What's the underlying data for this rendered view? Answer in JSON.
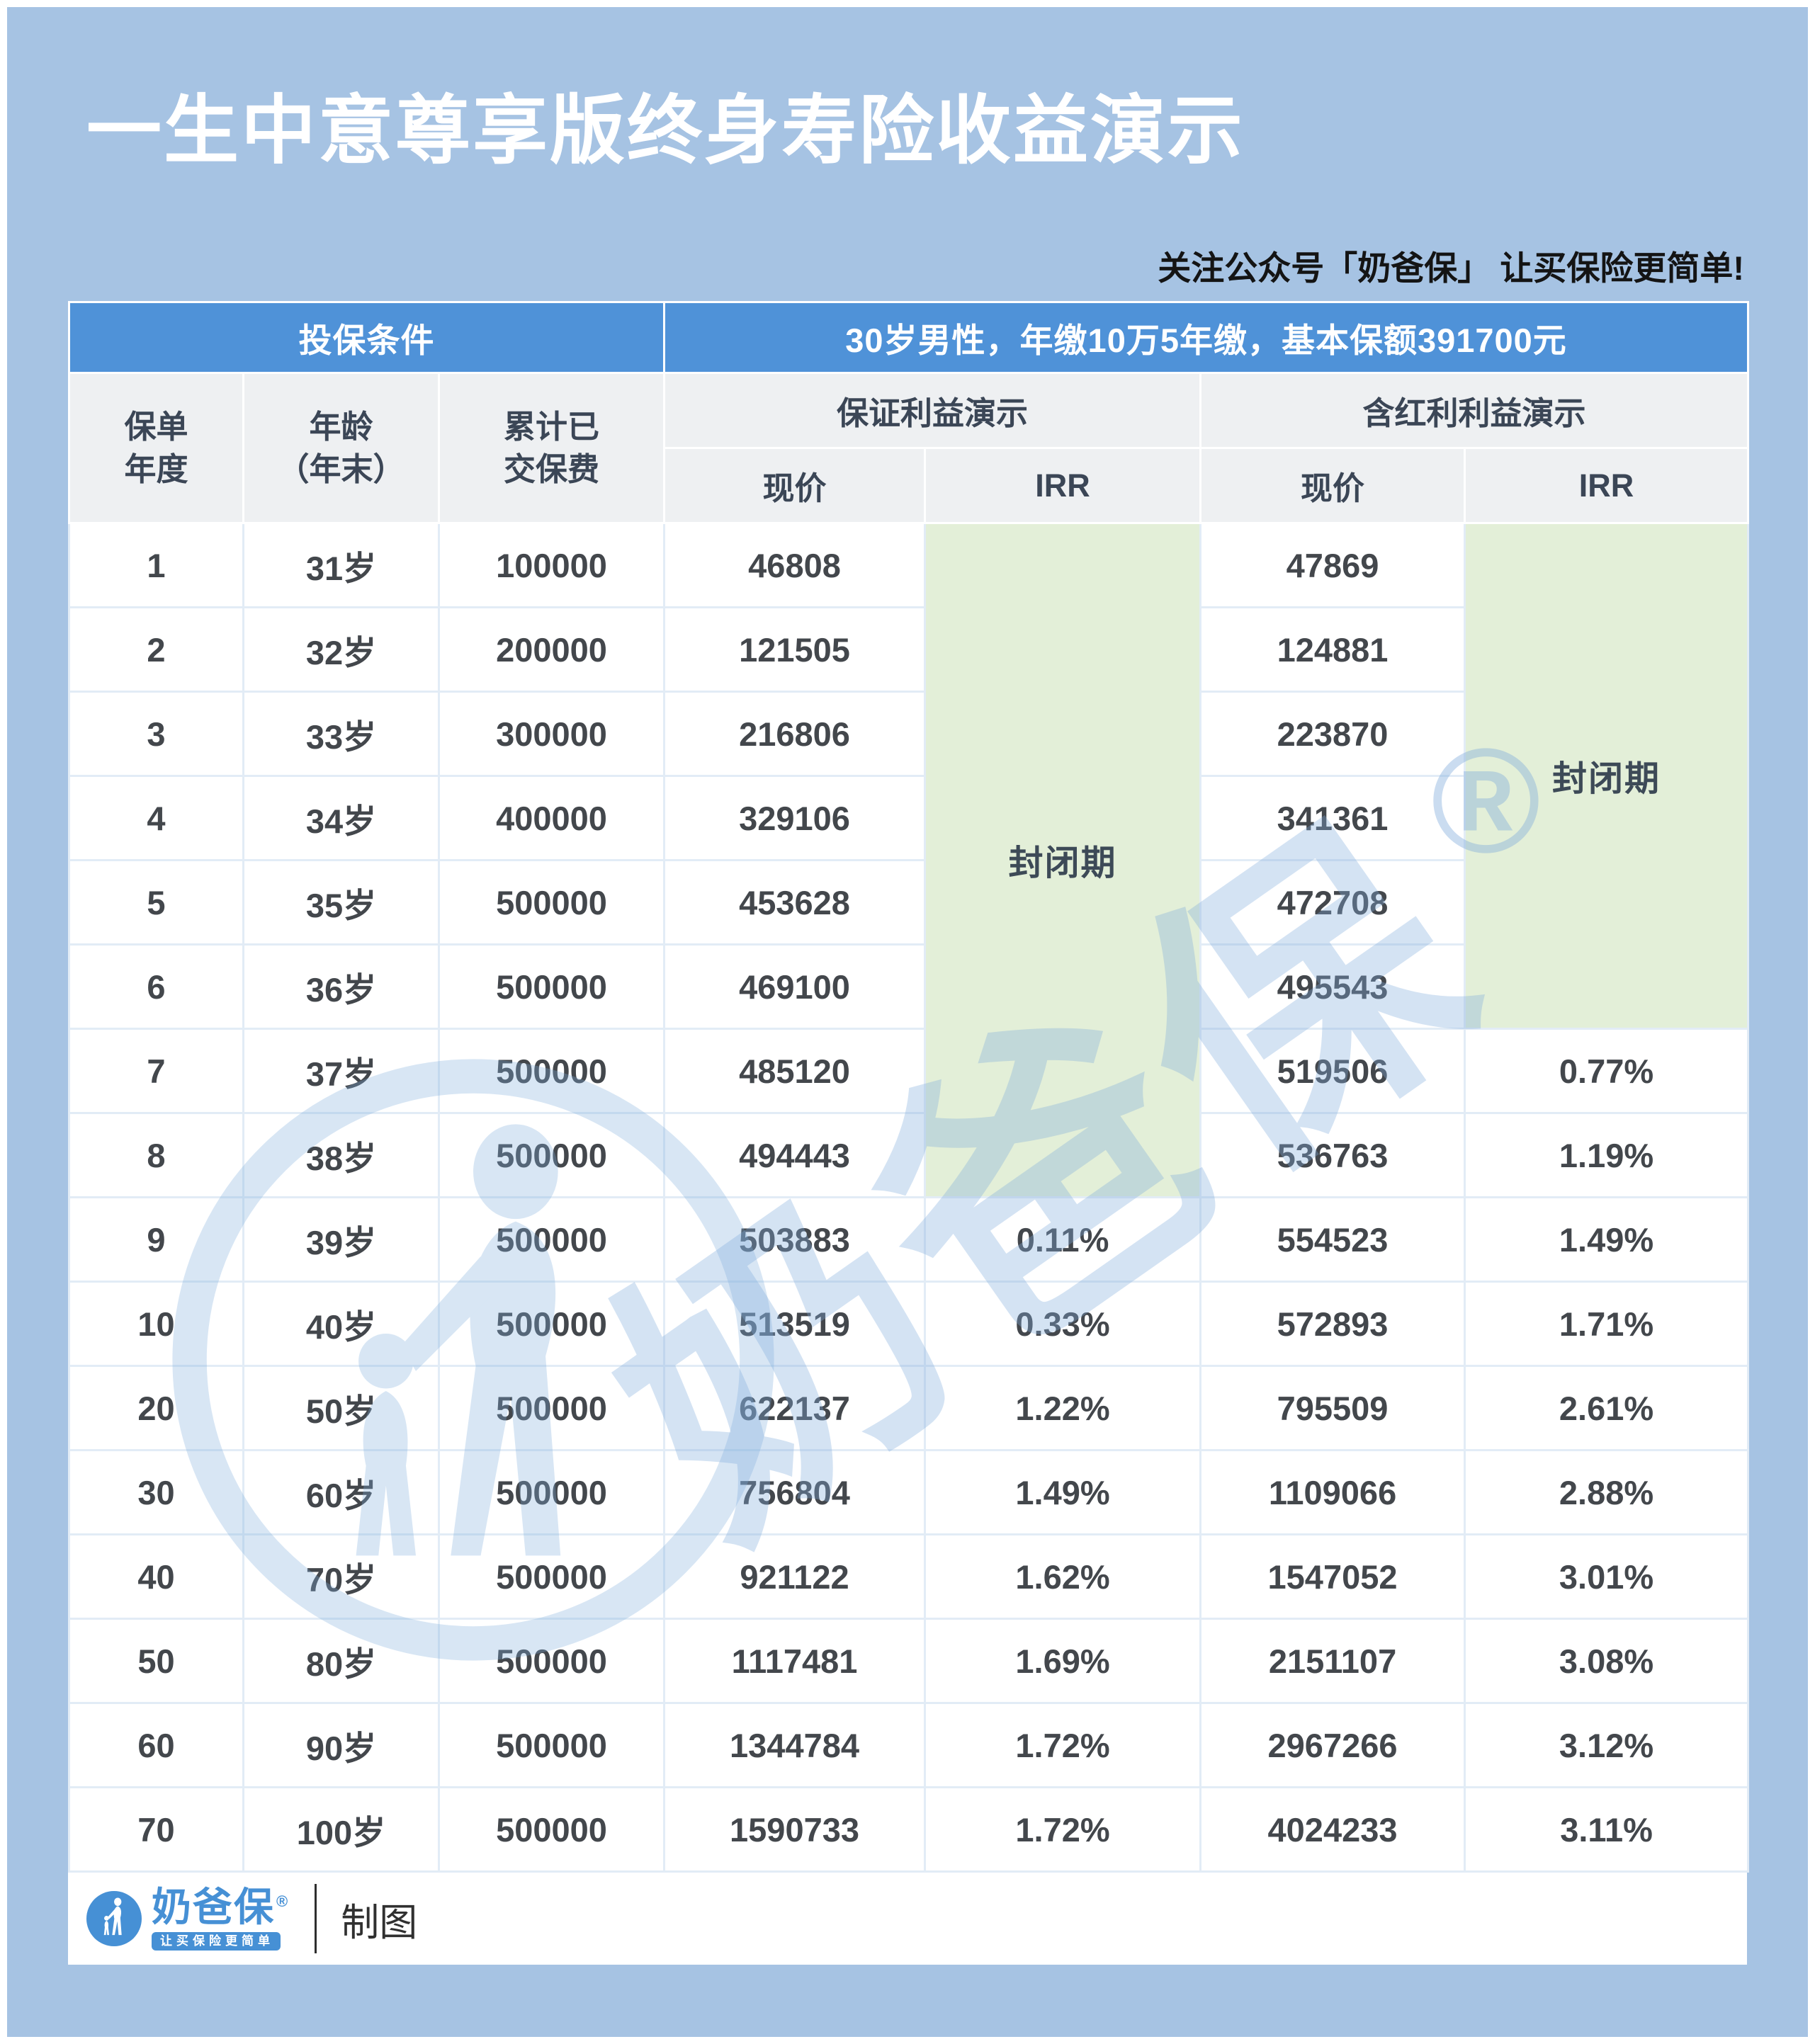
{
  "title": "一生中意尊享版终身寿险收益演示",
  "subtitle": "关注公众号「奶爸保」  让买保险更简单!",
  "table": {
    "condition_label": "投保条件",
    "condition_value": "30岁男性，年缴10万5年缴，基本保额391700元",
    "columns": {
      "policy_year": "保单\n年度",
      "age": "年龄\n（年末）",
      "premium": "累计已\n交保费",
      "guaranteed_group": "保证利益演示",
      "dividend_group": "含红利利益演示",
      "cash_value": "现价",
      "irr": "IRR"
    },
    "closed_period": "封闭期",
    "guaranteed_closed_rows": 8,
    "dividend_closed_rows": 6,
    "rows": [
      {
        "year": "1",
        "age": "31岁",
        "premium": "100000",
        "g_cv": "46808",
        "g_irr": "",
        "d_cv": "47869",
        "d_irr": ""
      },
      {
        "year": "2",
        "age": "32岁",
        "premium": "200000",
        "g_cv": "121505",
        "g_irr": "",
        "d_cv": "124881",
        "d_irr": ""
      },
      {
        "year": "3",
        "age": "33岁",
        "premium": "300000",
        "g_cv": "216806",
        "g_irr": "",
        "d_cv": "223870",
        "d_irr": ""
      },
      {
        "year": "4",
        "age": "34岁",
        "premium": "400000",
        "g_cv": "329106",
        "g_irr": "",
        "d_cv": "341361",
        "d_irr": ""
      },
      {
        "year": "5",
        "age": "35岁",
        "premium": "500000",
        "g_cv": "453628",
        "g_irr": "",
        "d_cv": "472708",
        "d_irr": ""
      },
      {
        "year": "6",
        "age": "36岁",
        "premium": "500000",
        "g_cv": "469100",
        "g_irr": "",
        "d_cv": "495543",
        "d_irr": ""
      },
      {
        "year": "7",
        "age": "37岁",
        "premium": "500000",
        "g_cv": "485120",
        "g_irr": "",
        "d_cv": "519506",
        "d_irr": "0.77%"
      },
      {
        "year": "8",
        "age": "38岁",
        "premium": "500000",
        "g_cv": "494443",
        "g_irr": "",
        "d_cv": "536763",
        "d_irr": "1.19%"
      },
      {
        "year": "9",
        "age": "39岁",
        "premium": "500000",
        "g_cv": "503883",
        "g_irr": "0.11%",
        "d_cv": "554523",
        "d_irr": "1.49%"
      },
      {
        "year": "10",
        "age": "40岁",
        "premium": "500000",
        "g_cv": "513519",
        "g_irr": "0.33%",
        "d_cv": "572893",
        "d_irr": "1.71%"
      },
      {
        "year": "20",
        "age": "50岁",
        "premium": "500000",
        "g_cv": "622137",
        "g_irr": "1.22%",
        "d_cv": "795509",
        "d_irr": "2.61%"
      },
      {
        "year": "30",
        "age": "60岁",
        "premium": "500000",
        "g_cv": "756804",
        "g_irr": "1.49%",
        "d_cv": "1109066",
        "d_irr": "2.88%"
      },
      {
        "year": "40",
        "age": "70岁",
        "premium": "500000",
        "g_cv": "921122",
        "g_irr": "1.62%",
        "d_cv": "1547052",
        "d_irr": "3.01%"
      },
      {
        "year": "50",
        "age": "80岁",
        "premium": "500000",
        "g_cv": "1117481",
        "g_irr": "1.69%",
        "d_cv": "2151107",
        "d_irr": "3.08%"
      },
      {
        "year": "60",
        "age": "90岁",
        "premium": "500000",
        "g_cv": "1344784",
        "g_irr": "1.72%",
        "d_cv": "2967266",
        "d_irr": "3.12%"
      },
      {
        "year": "70",
        "age": "100岁",
        "premium": "500000",
        "g_cv": "1590733",
        "g_irr": "1.72%",
        "d_cv": "4024233",
        "d_irr": "3.11%"
      }
    ]
  },
  "chart_data": {
    "type": "table",
    "title": "一生中意尊享版终身寿险收益演示",
    "condition": "30岁男性，年缴10万5年缴，基本保额391700元",
    "columns": [
      "保单年度",
      "年龄（年末）",
      "累计已交保费",
      "保证利益演示-现价",
      "保证利益演示-IRR",
      "含红利利益演示-现价",
      "含红利利益演示-IRR"
    ],
    "rows": [
      [
        1,
        "31岁",
        100000,
        46808,
        "封闭期",
        47869,
        "封闭期"
      ],
      [
        2,
        "32岁",
        200000,
        121505,
        "封闭期",
        124881,
        "封闭期"
      ],
      [
        3,
        "33岁",
        300000,
        216806,
        "封闭期",
        223870,
        "封闭期"
      ],
      [
        4,
        "34岁",
        400000,
        329106,
        "封闭期",
        341361,
        "封闭期"
      ],
      [
        5,
        "35岁",
        500000,
        453628,
        "封闭期",
        472708,
        "封闭期"
      ],
      [
        6,
        "36岁",
        500000,
        469100,
        "封闭期",
        495543,
        "封闭期"
      ],
      [
        7,
        "37岁",
        500000,
        485120,
        "封闭期",
        519506,
        "0.77%"
      ],
      [
        8,
        "38岁",
        500000,
        494443,
        "封闭期",
        536763,
        "1.19%"
      ],
      [
        9,
        "39岁",
        500000,
        503883,
        "0.11%",
        554523,
        "1.49%"
      ],
      [
        10,
        "40岁",
        500000,
        513519,
        "0.33%",
        572893,
        "1.71%"
      ],
      [
        20,
        "50岁",
        500000,
        622137,
        "1.22%",
        795509,
        "2.61%"
      ],
      [
        30,
        "60岁",
        500000,
        756804,
        "1.49%",
        1109066,
        "2.88%"
      ],
      [
        40,
        "70岁",
        500000,
        921122,
        "1.62%",
        1547052,
        "3.01%"
      ],
      [
        50,
        "80岁",
        500000,
        1117481,
        "1.69%",
        2151107,
        "3.08%"
      ],
      [
        60,
        "90岁",
        500000,
        1344784,
        "1.72%",
        2967266,
        "3.12%"
      ],
      [
        70,
        "100岁",
        500000,
        1590733,
        "1.72%",
        4024233,
        "3.11%"
      ]
    ]
  },
  "watermark": {
    "text": "奶爸保",
    "reg": "®"
  },
  "footer": {
    "brand": "奶爸保",
    "reg": "®",
    "tagline": "让买保险更简单",
    "caption": "制图"
  },
  "colors": {
    "page_bg": "#a6c3e3",
    "header_blue": "#4f92d8",
    "header_gray": "#eef0f2",
    "closed_green": "#e3efd8",
    "brand_blue": "#4690d5",
    "text_dark": "#43474c"
  }
}
